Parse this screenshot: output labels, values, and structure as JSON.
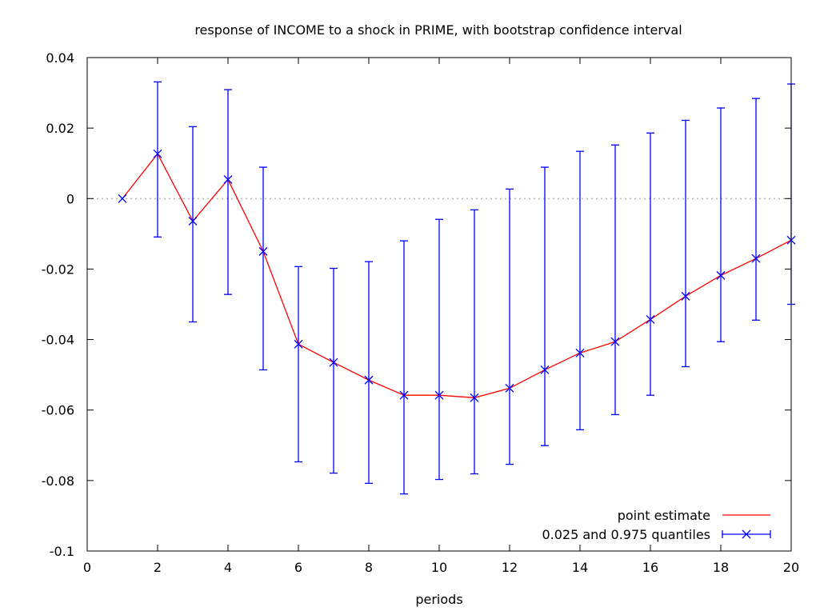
{
  "chart_data": {
    "type": "line",
    "title": "response of INCOME to a shock in PRIME, with bootstrap confidence interval",
    "xlabel": "periods",
    "ylabel": "",
    "xlim": [
      0,
      20
    ],
    "ylim": [
      -0.1,
      0.04
    ],
    "xticks": [
      "0",
      "2",
      "4",
      "6",
      "8",
      "10",
      "12",
      "14",
      "16",
      "18",
      "20"
    ],
    "yticks": [
      "0.04",
      "0.02",
      "0",
      "-0.02",
      "-0.04",
      "-0.06",
      "-0.08",
      "-0.1"
    ],
    "zero_line": true,
    "legend_position": "bottom-right",
    "colors": {
      "point_estimate": "#ff0000",
      "quantiles": "#0000ff",
      "zero_line": "#999999"
    },
    "x": [
      1,
      2,
      3,
      4,
      5,
      6,
      7,
      8,
      9,
      10,
      11,
      12,
      13,
      14,
      15,
      16,
      17,
      18,
      19,
      20
    ],
    "series": [
      {
        "name": "point estimate",
        "values": [
          0,
          0.0127,
          -0.0064,
          0.0054,
          -0.015,
          -0.0413,
          -0.0465,
          -0.0515,
          -0.0558,
          -0.0558,
          -0.0565,
          -0.0538,
          -0.0486,
          -0.0438,
          -0.0406,
          -0.0343,
          -0.0277,
          -0.0218,
          -0.017,
          -0.0118
        ]
      },
      {
        "name": "0.025 and 0.975 quantiles",
        "lower": [
          0,
          -0.0109,
          -0.035,
          -0.0272,
          -0.0486,
          -0.0747,
          -0.0779,
          -0.0808,
          -0.0838,
          -0.0797,
          -0.0781,
          -0.0754,
          -0.0701,
          -0.0656,
          -0.0613,
          -0.0558,
          -0.0477,
          -0.0406,
          -0.0345,
          -0.03
        ],
        "upper": [
          0,
          0.0331,
          0.0204,
          0.0309,
          0.0089,
          -0.0193,
          -0.0198,
          -0.0179,
          -0.012,
          -0.0059,
          -0.0032,
          0.0027,
          0.0089,
          0.0134,
          0.0152,
          0.0186,
          0.0222,
          0.0257,
          0.0284,
          0.0325
        ]
      }
    ]
  }
}
